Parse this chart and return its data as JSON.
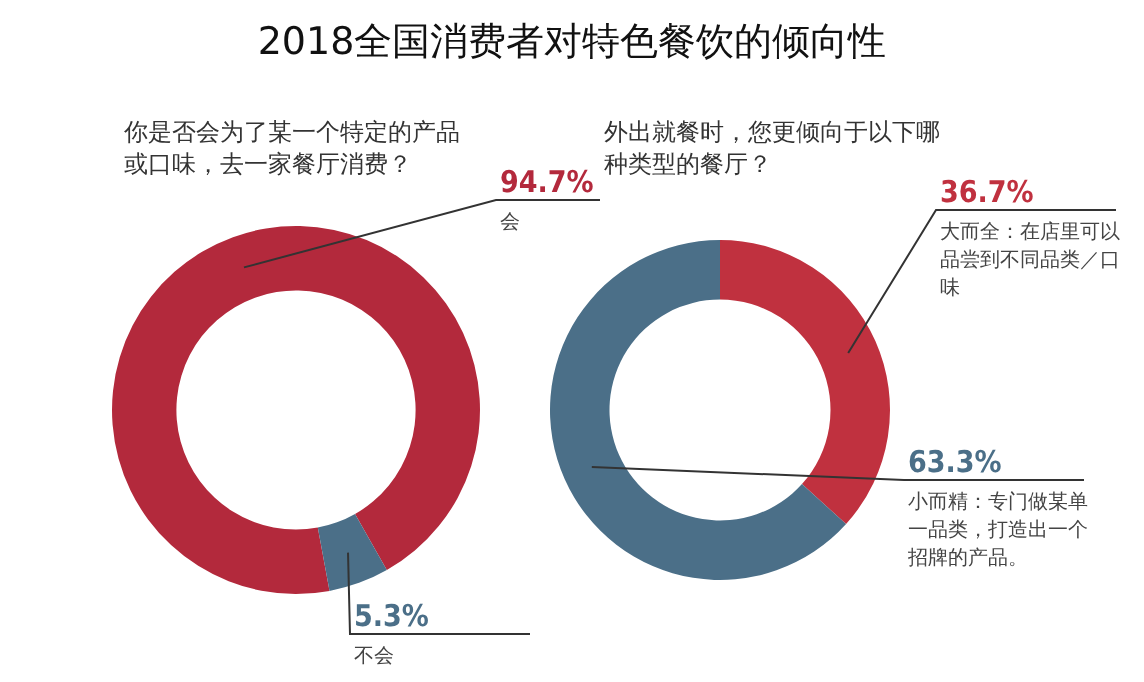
{
  "chart_data": [
    {
      "type": "donut",
      "title": "2018全国消费者对特色餐饮的倾向性",
      "subtitle": "你是否会为了某一个特定的产品或口味，去一家餐厅消费？",
      "categories": [
        "会",
        "不会"
      ],
      "values": [
        94.7,
        5.3
      ],
      "colors": [
        "#b3293c",
        "#4b6f88"
      ],
      "value_labels": [
        "94.7%",
        "5.3%"
      ]
    },
    {
      "type": "donut",
      "subtitle": "外出就餐时，您更倾向于以下哪种类型的餐厅？",
      "categories": [
        "大而全：在店里可以品尝到不同品类／口味",
        "小而精：专门做某单一品类，打造出一个招牌的产品。"
      ],
      "values": [
        36.7,
        63.3
      ],
      "colors": [
        "#c0313f",
        "#4b6f88"
      ],
      "value_labels": [
        "36.7%",
        "63.3%"
      ]
    }
  ]
}
